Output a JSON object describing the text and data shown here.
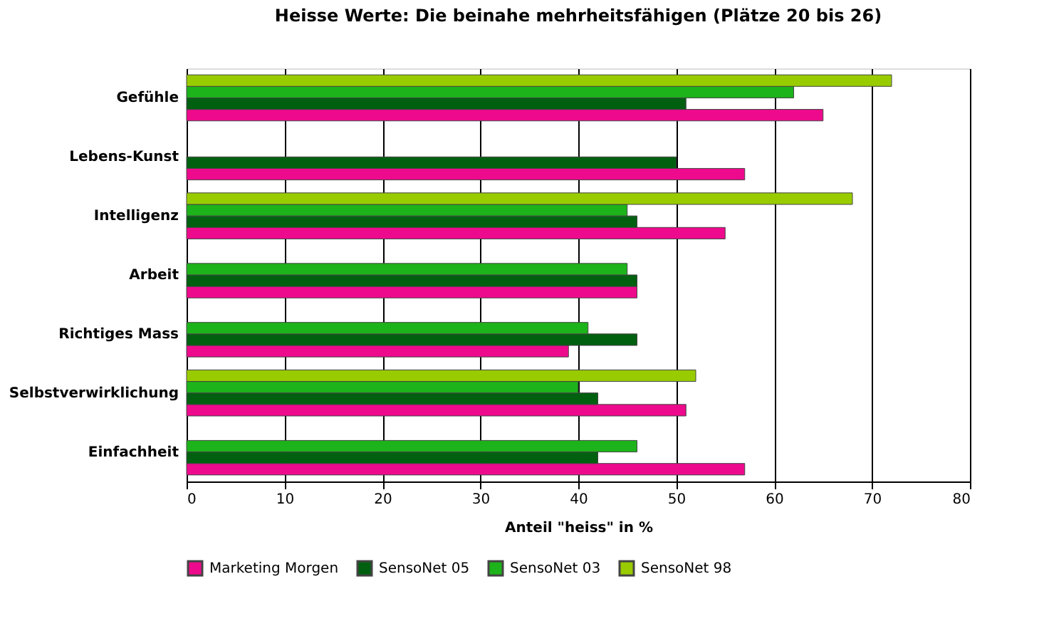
{
  "chart_data": {
    "type": "bar",
    "orientation": "horizontal",
    "title": "Heisse Werte: Die beinahe mehrheitsfähigen (Plätze 20 bis 26)",
    "xlabel": "Anteil \"heiss\" in %",
    "categories": [
      "Gefühle",
      "Lebens-Kunst",
      "Intelligenz",
      "Arbeit",
      "Richtiges Mass",
      "Selbstverwirklichung",
      "Einfachheit"
    ],
    "series": [
      {
        "name": "Marketing Morgen",
        "color": "#ee0a8c",
        "values": [
          65,
          57,
          55,
          46,
          39,
          51,
          57
        ]
      },
      {
        "name": "SensoNet 05",
        "color": "#006010",
        "values": [
          51,
          50,
          46,
          46,
          46,
          42,
          42
        ]
      },
      {
        "name": "SensoNet 03",
        "color": "#1db31a",
        "values": [
          62,
          null,
          45,
          45,
          41,
          40,
          46
        ]
      },
      {
        "name": "SensoNet 98",
        "color": "#99cc00",
        "values": [
          72,
          null,
          68,
          null,
          null,
          52,
          null
        ]
      }
    ],
    "xlim": [
      0,
      80
    ],
    "xticks": [
      0,
      10,
      20,
      30,
      40,
      50,
      60,
      70,
      80
    ],
    "grid": "x",
    "legend": "bottom"
  }
}
